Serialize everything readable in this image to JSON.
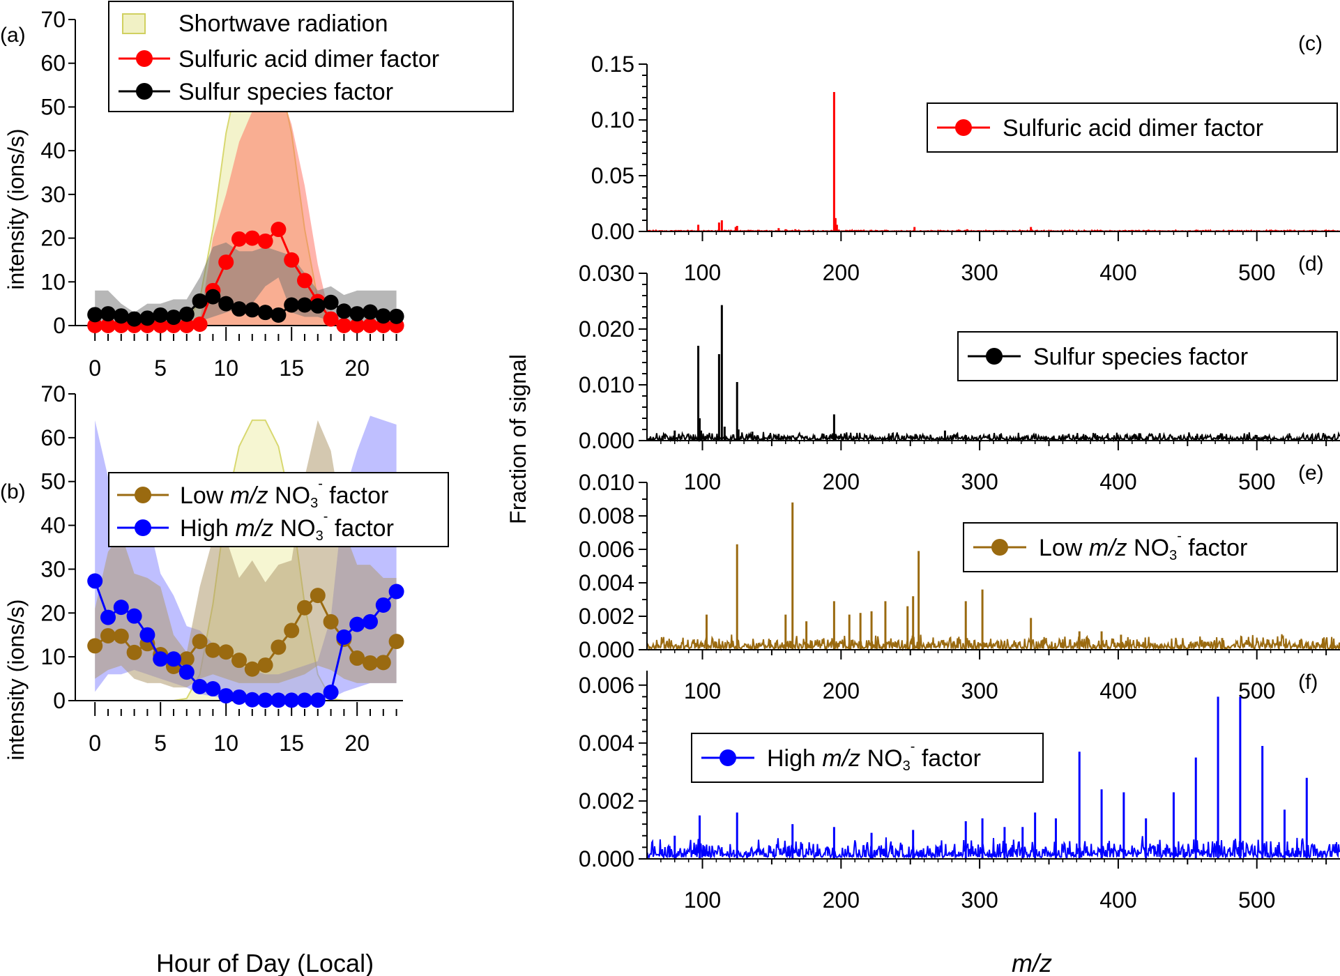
{
  "chart_data": [
    {
      "panel": "(a)",
      "type": "line",
      "ylabel": "intensity (ions/s)",
      "xlabel": "",
      "xlim": [
        -1.5,
        23.5
      ],
      "ylim": [
        0,
        70
      ],
      "xticks": [
        "0",
        "5",
        "10",
        "15",
        "20"
      ],
      "yticks": [
        "0",
        "10",
        "20",
        "30",
        "40",
        "50",
        "60",
        "70"
      ],
      "legend": {
        "placement": "top",
        "entries": [
          {
            "label": "Shortwave radiation",
            "color": "#d6d65a"
          },
          {
            "label": "Sulfuric acid dimer factor",
            "color": "#ff0000"
          },
          {
            "label": "Sulfur species factor",
            "color": "#000000"
          }
        ]
      },
      "x": [
        0,
        1,
        2,
        3,
        4,
        5,
        6,
        7,
        8,
        9,
        10,
        11,
        12,
        13,
        14,
        15,
        16,
        17,
        18,
        19,
        20,
        21,
        22,
        23
      ],
      "bands": [
        {
          "name": "Shortwave radiation",
          "color": "#e4e48c",
          "upper": [
            0,
            0,
            0,
            0,
            0,
            0,
            0,
            0.5,
            6,
            22,
            44,
            58,
            64,
            64,
            58,
            44,
            22,
            6,
            0.5,
            0,
            0,
            0,
            0,
            0
          ],
          "lower": [
            0,
            0,
            0,
            0,
            0,
            0,
            0,
            0,
            0,
            0,
            0,
            0,
            0,
            0,
            0,
            0,
            0,
            0,
            0,
            0,
            0,
            0,
            0,
            0
          ]
        },
        {
          "name": "Sulfuric acid dimer factor range",
          "color": "#ff6a5a",
          "upper": [
            0.2,
            0.2,
            0.2,
            0.2,
            0.2,
            0.2,
            0.2,
            0.2,
            1,
            20,
            30,
            42,
            49,
            53,
            55,
            46,
            32,
            14,
            1,
            0.2,
            0.2,
            0.2,
            0.2,
            0.2
          ],
          "lower": [
            0,
            0,
            0,
            0,
            0,
            0,
            0,
            0,
            0,
            0,
            0,
            0,
            0,
            0,
            0,
            0,
            0,
            0,
            0,
            0,
            0,
            0,
            0,
            0
          ]
        },
        {
          "name": "Sulfur species factor range",
          "color": "#6f6f6f",
          "upper": [
            8,
            8,
            5,
            3,
            5,
            5,
            6,
            6,
            11,
            18,
            19,
            17,
            17,
            18,
            17,
            16,
            12,
            8,
            9,
            7,
            8,
            8,
            8,
            8
          ],
          "lower": [
            0.3,
            0.3,
            0.3,
            0.3,
            0.3,
            0.3,
            0.3,
            0.3,
            1,
            2,
            3,
            4,
            5,
            9,
            11,
            3,
            2,
            2,
            1,
            0.3,
            0.3,
            0.3,
            0.3,
            0.3
          ]
        }
      ],
      "series": [
        {
          "name": "Sulfuric acid dimer factor",
          "color": "#ff0000",
          "values": [
            0,
            0,
            0,
            0,
            0,
            0,
            0,
            0,
            0.3,
            8,
            14.5,
            19.8,
            20,
            19.3,
            22,
            15,
            10.3,
            5.5,
            1.5,
            0,
            0,
            0,
            0,
            0
          ]
        },
        {
          "name": "Sulfur species factor",
          "color": "#000000",
          "values": [
            2.5,
            2.7,
            2.2,
            1.5,
            1.7,
            2.4,
            1.9,
            2.6,
            5.6,
            6.6,
            5,
            3.8,
            3.6,
            3,
            2.4,
            4.7,
            4.7,
            4.5,
            5.3,
            3.3,
            2.7,
            3.1,
            2.2,
            2.1
          ]
        }
      ]
    },
    {
      "panel": "(b)",
      "type": "line",
      "ylabel": "intensity (ions/s)",
      "xlabel": "Hour of Day (Local)",
      "xlim": [
        -1.5,
        23.5
      ],
      "ylim": [
        0,
        70
      ],
      "xticks": [
        "0",
        "5",
        "10",
        "15",
        "20"
      ],
      "yticks": [
        "0",
        "10",
        "20",
        "30",
        "40",
        "50",
        "60",
        "70"
      ],
      "legend": {
        "placement": "top",
        "entries": [
          {
            "label_pre": "Low ",
            "label_italic": "m/z",
            "label_mid": " NO",
            "label_sub": "3",
            "label_sup": "-",
            "label_post": " factor",
            "color": "#9a6a10"
          },
          {
            "label_pre": "High ",
            "label_italic": "m/z",
            "label_mid": " NO",
            "label_sub": "3",
            "label_sup": "-",
            "label_post": " factor",
            "color": "#0000ff"
          }
        ]
      },
      "x": [
        0,
        1,
        2,
        3,
        4,
        5,
        6,
        7,
        8,
        9,
        10,
        11,
        12,
        13,
        14,
        15,
        16,
        17,
        18,
        19,
        20,
        21,
        22,
        23
      ],
      "bands": [
        {
          "name": "Shortwave radiation",
          "color": "#ecec9c",
          "upper": [
            0,
            0,
            0,
            0,
            0,
            0,
            0,
            0.5,
            6,
            22,
            44,
            58,
            64,
            64,
            58,
            44,
            22,
            6,
            0.5,
            0,
            0,
            0,
            0,
            0
          ],
          "lower": [
            0,
            0,
            0,
            0,
            0,
            0,
            0,
            0,
            0,
            0,
            0,
            0,
            0,
            0,
            0,
            0,
            0,
            0,
            0,
            0,
            0,
            0,
            0,
            0
          ]
        },
        {
          "name": "High m/z NO3- factor range",
          "color": "#8080ff",
          "upper": [
            64,
            51,
            52,
            48,
            42,
            29,
            24,
            17,
            16,
            13,
            10,
            8,
            7,
            6,
            6,
            7,
            8,
            9,
            19,
            47,
            57,
            65,
            64,
            63
          ],
          "lower": [
            2,
            6,
            6,
            7,
            6,
            5,
            4,
            3,
            1.5,
            1,
            0.5,
            0.4,
            0.3,
            0.3,
            0.3,
            0.3,
            0.3,
            0.3,
            0.5,
            2,
            3,
            4,
            4,
            4
          ]
        },
        {
          "name": "Low m/z NO3- factor range",
          "color": "#b09a70",
          "upper": [
            21,
            34,
            38,
            29,
            28,
            26,
            15,
            11,
            26,
            37,
            37,
            28,
            32,
            27,
            31,
            32,
            51,
            64,
            57,
            39,
            31,
            31,
            28,
            28
          ]
        },
        {
          "name": "Low m/z NO3- factor lower",
          "color": "#b09a70",
          "lower": [
            5,
            7,
            8,
            5,
            4,
            4,
            3,
            3,
            5,
            6,
            5,
            4,
            4,
            4,
            4,
            5,
            6,
            8,
            7,
            5,
            4,
            4,
            4,
            4
          ]
        }
      ],
      "series": [
        {
          "name": "Low m/z NO3- factor",
          "color": "#9a6a10",
          "values": [
            12.5,
            14.8,
            14.7,
            11,
            13,
            10.5,
            7.8,
            9.5,
            13.5,
            11.5,
            11.1,
            9.2,
            7.2,
            8.1,
            12.2,
            16,
            21.2,
            24,
            18,
            14,
            9.7,
            8.6,
            8.7,
            13.5
          ]
        },
        {
          "name": "High m/z NO3- factor",
          "color": "#0000ff",
          "values": [
            27.3,
            19,
            21.3,
            19.3,
            15,
            9.5,
            9.5,
            6.5,
            3.2,
            2.7,
            1.1,
            0.8,
            0.2,
            0.1,
            0.1,
            0.1,
            0.1,
            0.1,
            1.9,
            14.5,
            17.4,
            18,
            21.8,
            24.9
          ]
        }
      ]
    },
    {
      "panel": "(c)",
      "type": "bar",
      "xlim": [
        60,
        560
      ],
      "ylim": [
        0,
        0.15
      ],
      "xticks": [
        "100",
        "200",
        "300",
        "400",
        "500"
      ],
      "yticks": [
        "0.00",
        "0.05",
        "0.10",
        "0.15"
      ],
      "legend": {
        "placement": "top-right",
        "entries": [
          {
            "label": "Sulfuric acid dimer factor",
            "color": "#ff0000"
          }
        ]
      },
      "color": "#ff0000",
      "noise": 0.0004,
      "peaks": [
        [
          97,
          0.006
        ],
        [
          112,
          0.008
        ],
        [
          114,
          0.01
        ],
        [
          124,
          0.004
        ],
        [
          125,
          0.005
        ],
        [
          155,
          0.003
        ],
        [
          160,
          0.002
        ],
        [
          167,
          0.002
        ],
        [
          195,
          0.125
        ],
        [
          196,
          0.012
        ],
        [
          197,
          0.006
        ],
        [
          253,
          0.004
        ],
        [
          291,
          0.002
        ],
        [
          337,
          0.004
        ]
      ]
    },
    {
      "panel": "(d)",
      "type": "bar",
      "xlim": [
        60,
        560
      ],
      "ylim": [
        0,
        0.03
      ],
      "xticks": [
        "100",
        "200",
        "300",
        "400",
        "500"
      ],
      "yticks": [
        "0.000",
        "0.010",
        "0.020",
        "0.030"
      ],
      "legend": {
        "placement": "top-right",
        "entries": [
          {
            "label": "Sulfur species factor",
            "color": "#000000"
          }
        ]
      },
      "color": "#000000",
      "noise": 0.0005,
      "peaks": [
        [
          80,
          0.0018
        ],
        [
          97,
          0.017
        ],
        [
          98,
          0.004
        ],
        [
          99,
          0.0018
        ],
        [
          112,
          0.0155
        ],
        [
          114,
          0.0243
        ],
        [
          116,
          0.0025
        ],
        [
          125,
          0.0105
        ],
        [
          126,
          0.002
        ],
        [
          136,
          0.0016
        ],
        [
          155,
          0.0012
        ],
        [
          195,
          0.0047
        ],
        [
          196,
          0.0012
        ],
        [
          275,
          0.0018
        ],
        [
          290,
          0.001
        ]
      ]
    },
    {
      "panel": "(e)",
      "type": "bar",
      "ylabel": "Fraction of signal",
      "xlim": [
        60,
        560
      ],
      "ylim": [
        0,
        0.01
      ],
      "xticks": [
        "100",
        "200",
        "300",
        "400",
        "500"
      ],
      "yticks": [
        "0.000",
        "0.002",
        "0.004",
        "0.006",
        "0.008",
        "0.010"
      ],
      "legend": {
        "placement": "top-right",
        "entries": [
          {
            "label_pre": "Low ",
            "label_italic": "m/z",
            "label_mid": " NO",
            "label_sub": "3",
            "label_sup": "-",
            "label_post": " factor",
            "color": "#9a6a10"
          }
        ]
      },
      "color": "#9a6a10",
      "noise": 0.0003,
      "peaks": [
        [
          103,
          0.0021
        ],
        [
          125,
          0.0063
        ],
        [
          160,
          0.0021
        ],
        [
          165,
          0.0088
        ],
        [
          175,
          0.0017
        ],
        [
          195,
          0.0029
        ],
        [
          206,
          0.0021
        ],
        [
          214,
          0.0022
        ],
        [
          222,
          0.0023
        ],
        [
          232,
          0.0029
        ],
        [
          248,
          0.0026
        ],
        [
          252,
          0.0032
        ],
        [
          256,
          0.0059
        ],
        [
          290,
          0.0029
        ],
        [
          302,
          0.0036
        ],
        [
          337,
          0.0019
        ],
        [
          372,
          0.0011
        ],
        [
          388,
          0.0011
        ],
        [
          402,
          0.0009
        ],
        [
          475,
          0.0007
        ]
      ]
    },
    {
      "panel": "(f)",
      "type": "bar",
      "xlim": [
        60,
        560
      ],
      "ylim": [
        0,
        0.0065
      ],
      "xticks": [
        "100",
        "200",
        "300",
        "400",
        "500"
      ],
      "yticks": [
        "0.000",
        "0.002",
        "0.004",
        "0.006"
      ],
      "xlabel_italic": "m/z",
      "legend": {
        "placement": "top-left",
        "entries": [
          {
            "label_pre": "High ",
            "label_italic": "m/z",
            "label_mid": " NO",
            "label_sub": "3",
            "label_sup": "-",
            "label_post": " factor",
            "color": "#0000ff"
          }
        ]
      },
      "color": "#0000ff",
      "noise": 0.00025,
      "peaks": [
        [
          80,
          0.0008
        ],
        [
          98,
          0.0015
        ],
        [
          125,
          0.0016
        ],
        [
          165,
          0.0012
        ],
        [
          195,
          0.0011
        ],
        [
          222,
          0.0009
        ],
        [
          252,
          0.001
        ],
        [
          290,
          0.0013
        ],
        [
          302,
          0.0014
        ],
        [
          318,
          0.0011
        ],
        [
          331,
          0.0011
        ],
        [
          340,
          0.0016
        ],
        [
          355,
          0.0014
        ],
        [
          372,
          0.0037
        ],
        [
          388,
          0.0024
        ],
        [
          404,
          0.0023
        ],
        [
          420,
          0.0014
        ],
        [
          440,
          0.0023
        ],
        [
          456,
          0.0035
        ],
        [
          472,
          0.0056
        ],
        [
          488,
          0.0056
        ],
        [
          504,
          0.0039
        ],
        [
          520,
          0.0017
        ],
        [
          536,
          0.0028
        ]
      ]
    }
  ],
  "labels": {
    "a": "(a)",
    "b": "(b)",
    "c": "(c)",
    "d": "(d)",
    "e": "(e)",
    "f": "(f)",
    "intensity_a": "intensity (ions/s)",
    "intensity_b": "intensity (ions/s)",
    "fraction": "Fraction of signal",
    "hour": "Hour of Day (Local)",
    "mz": "m/z"
  }
}
